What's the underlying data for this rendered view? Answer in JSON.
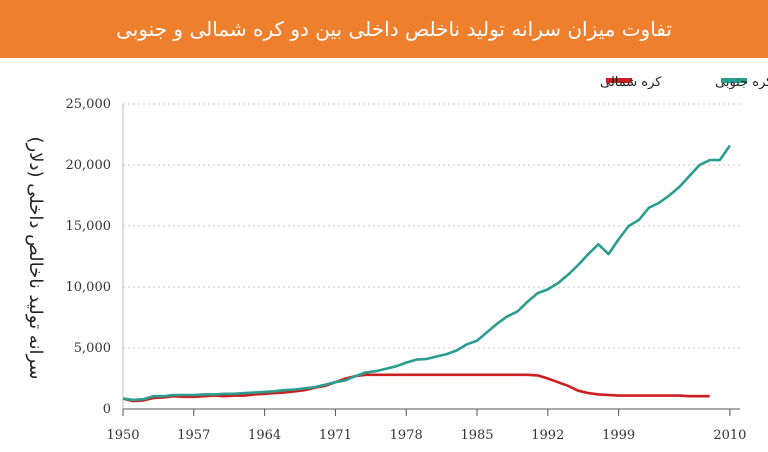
{
  "chart_data": {
    "type": "line",
    "title": "تفاوت میزان سرانه تولید ناخلص داخلی بین دو کره شمالی و جنوبی",
    "xlabel": "",
    "ylabel": "سرانه تولید ناخالص داخلی (دلار)",
    "xlim": [
      1950,
      2011
    ],
    "ylim": [
      0,
      25000
    ],
    "x_ticks": [
      1950,
      1957,
      1964,
      1971,
      1978,
      1985,
      1992,
      1999,
      2010
    ],
    "y_ticks": [
      0,
      5000,
      10000,
      15000,
      20000,
      25000
    ],
    "y_tick_labels": [
      "0",
      "5,000",
      "10,000",
      "15,000",
      "20,000",
      "25,000"
    ],
    "grid": "horizontal dashed",
    "legend_position": "top-right",
    "series": [
      {
        "name": "کره جنوبی",
        "color": "#2a9d8f",
        "x": [
          1950,
          1951,
          1952,
          1953,
          1954,
          1955,
          1956,
          1957,
          1958,
          1959,
          1960,
          1961,
          1962,
          1963,
          1964,
          1965,
          1966,
          1967,
          1968,
          1969,
          1970,
          1971,
          1972,
          1973,
          1974,
          1975,
          1976,
          1977,
          1978,
          1979,
          1980,
          1981,
          1982,
          1983,
          1984,
          1985,
          1986,
          1987,
          1988,
          1989,
          1990,
          1991,
          1992,
          1993,
          1994,
          1995,
          1996,
          1997,
          1998,
          1999,
          2000,
          2001,
          2002,
          2003,
          2004,
          2005,
          2006,
          2007,
          2008,
          2009,
          2010
        ],
        "values": [
          850,
          750,
          800,
          1050,
          1050,
          1150,
          1150,
          1150,
          1200,
          1200,
          1250,
          1250,
          1300,
          1350,
          1400,
          1450,
          1550,
          1600,
          1700,
          1800,
          2000,
          2200,
          2350,
          2700,
          3000,
          3100,
          3300,
          3500,
          3800,
          4050,
          4100,
          4300,
          4500,
          4800,
          5300,
          5600,
          6300,
          7000,
          7600,
          8000,
          8800,
          9500,
          9800,
          10300,
          11000,
          11800,
          12700,
          13500,
          12700,
          13900,
          15000,
          15500,
          16500,
          16900,
          17500,
          18200,
          19100,
          20000,
          20400,
          20400,
          21600
        ]
      },
      {
        "name": "کره شمالی",
        "color": "#cc1f1f",
        "x": [
          1950,
          1951,
          1952,
          1953,
          1954,
          1955,
          1956,
          1957,
          1958,
          1959,
          1960,
          1961,
          1962,
          1963,
          1964,
          1965,
          1966,
          1967,
          1968,
          1969,
          1970,
          1971,
          1972,
          1973,
          1974,
          1975,
          1976,
          1977,
          1978,
          1979,
          1980,
          1981,
          1982,
          1983,
          1984,
          1985,
          1986,
          1987,
          1988,
          1989,
          1990,
          1991,
          1992,
          1993,
          1994,
          1995,
          1996,
          1997,
          1998,
          1999,
          2000,
          2001,
          2002,
          2003,
          2004,
          2005,
          2006,
          2007,
          2008
        ],
        "values": [
          850,
          650,
          700,
          900,
          950,
          1050,
          1000,
          1000,
          1050,
          1100,
          1050,
          1100,
          1100,
          1200,
          1250,
          1300,
          1350,
          1450,
          1550,
          1750,
          1900,
          2200,
          2500,
          2700,
          2800,
          2800,
          2800,
          2800,
          2800,
          2800,
          2800,
          2800,
          2800,
          2800,
          2800,
          2800,
          2800,
          2800,
          2800,
          2800,
          2800,
          2750,
          2500,
          2200,
          1900,
          1500,
          1300,
          1200,
          1150,
          1100,
          1100,
          1100,
          1100,
          1100,
          1100,
          1100,
          1050,
          1050,
          1050
        ]
      }
    ]
  }
}
